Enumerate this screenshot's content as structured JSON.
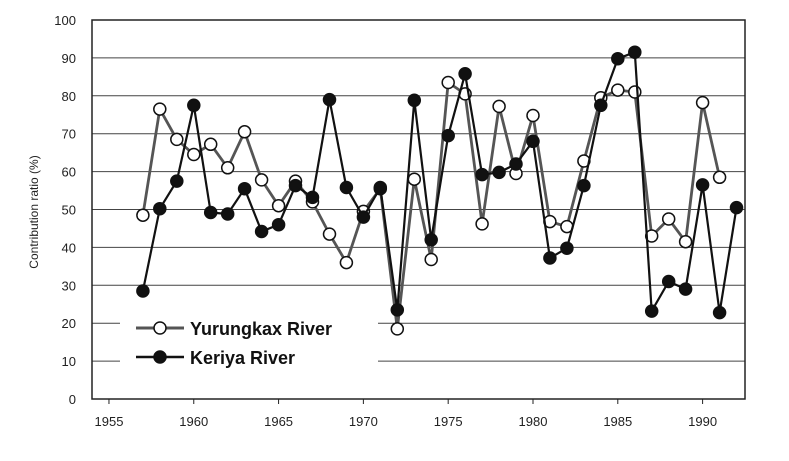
{
  "chart_data": {
    "type": "line",
    "title": "",
    "xlabel": "",
    "ylabel": "Contribution ratio (%)",
    "xlim": [
      1954,
      1992.5
    ],
    "ylim": [
      0,
      100
    ],
    "x_ticks": [
      1955,
      1960,
      1965,
      1970,
      1975,
      1980,
      1985,
      1990
    ],
    "y_ticks": [
      0,
      10,
      20,
      30,
      40,
      50,
      60,
      70,
      80,
      90,
      100
    ],
    "grid": "horizontal",
    "legend_position": "bottom-left",
    "series": [
      {
        "name": "Yurungkax River",
        "marker": "open-circle",
        "color": "#555555",
        "points": [
          [
            1957,
            48.5
          ],
          [
            1958,
            76.5
          ],
          [
            1959,
            68.5
          ],
          [
            1960,
            64.5
          ],
          [
            1961,
            67.2
          ],
          [
            1962,
            61.0
          ],
          [
            1963,
            70.5
          ],
          [
            1964,
            57.8
          ],
          [
            1965,
            51.0
          ],
          [
            1966,
            57.5
          ],
          [
            1967,
            52.0
          ],
          [
            1968,
            43.5
          ],
          [
            1969,
            36.0
          ],
          [
            1970,
            49.5
          ],
          [
            1971,
            55.5
          ],
          [
            1972,
            18.5
          ],
          [
            1973,
            58.0
          ],
          [
            1974,
            36.8
          ],
          [
            1975,
            83.5
          ],
          [
            1976,
            80.5
          ],
          [
            1977,
            46.2
          ],
          [
            1978,
            77.2
          ],
          [
            1979,
            59.5
          ],
          [
            1980,
            74.8
          ],
          [
            1981,
            46.8
          ],
          [
            1982,
            45.5
          ],
          [
            1983,
            62.8
          ],
          [
            1984,
            79.5
          ],
          [
            1985,
            81.5
          ],
          [
            1986,
            81.0
          ],
          [
            1987,
            43.0
          ],
          [
            1988,
            47.5
          ],
          [
            1989,
            41.5
          ],
          [
            1990,
            78.2
          ],
          [
            1991,
            58.5
          ]
        ]
      },
      {
        "name": "Keriya River",
        "marker": "filled-circle",
        "color": "#111111",
        "points": [
          [
            1957,
            28.5
          ],
          [
            1958,
            50.2
          ],
          [
            1959,
            57.5
          ],
          [
            1960,
            77.5
          ],
          [
            1961,
            49.2
          ],
          [
            1962,
            48.8
          ],
          [
            1963,
            55.5
          ],
          [
            1964,
            44.2
          ],
          [
            1965,
            46.0
          ],
          [
            1966,
            56.3
          ],
          [
            1967,
            53.2
          ],
          [
            1968,
            79.0
          ],
          [
            1969,
            55.8
          ],
          [
            1970,
            48.0
          ],
          [
            1971,
            55.8
          ],
          [
            1972,
            23.5
          ],
          [
            1973,
            78.8
          ],
          [
            1974,
            42.0
          ],
          [
            1975,
            69.5
          ],
          [
            1976,
            85.8
          ],
          [
            1977,
            59.2
          ],
          [
            1978,
            59.8
          ],
          [
            1979,
            62.0
          ],
          [
            1980,
            68.0
          ],
          [
            1981,
            37.2
          ],
          [
            1982,
            39.8
          ],
          [
            1983,
            56.3
          ],
          [
            1984,
            77.5
          ],
          [
            1985,
            89.8
          ],
          [
            1986,
            91.5
          ],
          [
            1987,
            23.2
          ],
          [
            1988,
            31.0
          ],
          [
            1989,
            29.0
          ],
          [
            1990,
            56.5
          ],
          [
            1991,
            22.8
          ],
          [
            1992,
            50.5
          ]
        ]
      }
    ]
  }
}
